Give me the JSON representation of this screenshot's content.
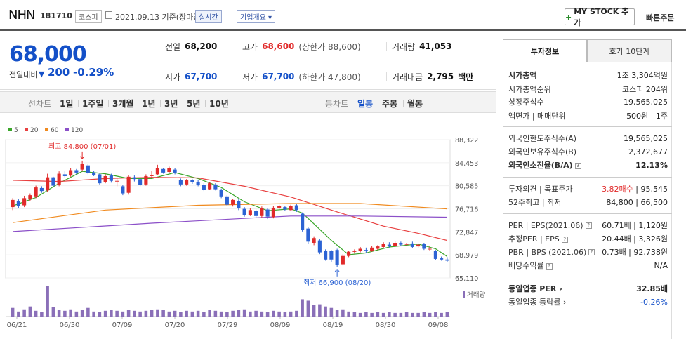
{
  "header": {
    "stock_name": "NHN",
    "stock_code": "181710",
    "market": "코스피",
    "date_text": "2021.09.13  기준(장마감)",
    "realtime_label": "실시간",
    "overview_label": "기업개요",
    "mystock_plus": "+",
    "mystock_label": "MY STOCK 추가",
    "quick_order": "빠른주문"
  },
  "price": {
    "current": "68,000",
    "change_label": "전일대비",
    "change_arrow": "▼",
    "change_amount": "200",
    "change_rate": "-0.29%"
  },
  "quote": {
    "prev_label": "전일",
    "prev_value": "68,200",
    "high_label": "고가",
    "high_value": "68,600",
    "upper_limit": "(상한가 88,600)",
    "volume_label": "거래량",
    "volume_value": "41,053",
    "open_label": "시가",
    "open_value": "67,700",
    "low_label": "저가",
    "low_value": "67,700",
    "lower_limit": "(하한가 47,800)",
    "amount_label": "거래대금",
    "amount_value": "2,795",
    "amount_unit": "백만"
  },
  "periods": {
    "line_label": "선차트",
    "line_items": [
      "1일",
      "1주일",
      "3개월",
      "1년",
      "3년",
      "5년",
      "10년"
    ],
    "candle_label": "봉차트",
    "candle_items": [
      "일봉",
      "주봉",
      "월봉"
    ],
    "selected": "일봉"
  },
  "chart_data": {
    "type": "candlestick",
    "legend": [
      "5",
      "20",
      "60",
      "120"
    ],
    "legend_colors": [
      "#3aa62a",
      "#e84040",
      "#f08a1e",
      "#8b4fc8"
    ],
    "y_ticks": [
      "88,322",
      "84,453",
      "80,585",
      "76,716",
      "72,847",
      "68,979",
      "65,110"
    ],
    "ylim": [
      65110,
      88322
    ],
    "x_ticks": [
      "06/21",
      "06/30",
      "07/09",
      "07/20",
      "07/29",
      "08/09",
      "08/19",
      "08/30",
      "09/08"
    ],
    "volume_label": "거래량",
    "high_annotation": "최고 84,800 (07/01)",
    "low_annotation": "최저 66,900 (08/20)",
    "candles": [
      {
        "o": 77000,
        "c": 78200,
        "h": 78500,
        "l": 76500
      },
      {
        "o": 78000,
        "c": 77200,
        "h": 78300,
        "l": 76800
      },
      {
        "o": 77300,
        "c": 78500,
        "h": 78900,
        "l": 77000
      },
      {
        "o": 78400,
        "c": 79000,
        "h": 79300,
        "l": 78000
      },
      {
        "o": 78800,
        "c": 80300,
        "h": 80600,
        "l": 78500
      },
      {
        "o": 80200,
        "c": 79700,
        "h": 80500,
        "l": 79400
      },
      {
        "o": 79800,
        "c": 82000,
        "h": 82600,
        "l": 79600
      },
      {
        "o": 82000,
        "c": 80600,
        "h": 82100,
        "l": 80400
      },
      {
        "o": 80700,
        "c": 82600,
        "h": 83000,
        "l": 80500
      },
      {
        "o": 82500,
        "c": 82200,
        "h": 83100,
        "l": 82000
      },
      {
        "o": 82300,
        "c": 83200,
        "h": 83500,
        "l": 82100
      },
      {
        "o": 83200,
        "c": 82800,
        "h": 83400,
        "l": 82500
      },
      {
        "o": 83300,
        "c": 84200,
        "h": 84800,
        "l": 83000
      },
      {
        "o": 84000,
        "c": 82700,
        "h": 84200,
        "l": 82500
      },
      {
        "o": 82800,
        "c": 82400,
        "h": 83100,
        "l": 82200
      },
      {
        "o": 82500,
        "c": 81000,
        "h": 82600,
        "l": 80800
      },
      {
        "o": 81200,
        "c": 82200,
        "h": 82500,
        "l": 81000
      },
      {
        "o": 82300,
        "c": 81400,
        "h": 82600,
        "l": 81100
      },
      {
        "o": 81400,
        "c": 81400,
        "h": 81800,
        "l": 80500
      },
      {
        "o": 80500,
        "c": 79300,
        "h": 80700,
        "l": 79000
      },
      {
        "o": 79400,
        "c": 82100,
        "h": 82400,
        "l": 79100
      },
      {
        "o": 82000,
        "c": 81700,
        "h": 82300,
        "l": 81300
      },
      {
        "o": 81700,
        "c": 80700,
        "h": 81900,
        "l": 80500
      },
      {
        "o": 80800,
        "c": 82200,
        "h": 82500,
        "l": 80600
      },
      {
        "o": 82200,
        "c": 82400,
        "h": 83100,
        "l": 81900
      },
      {
        "o": 82500,
        "c": 83500,
        "h": 84100,
        "l": 82400
      },
      {
        "o": 83400,
        "c": 82800,
        "h": 83600,
        "l": 82600
      },
      {
        "o": 82900,
        "c": 83500,
        "h": 83800,
        "l": 82700
      },
      {
        "o": 83300,
        "c": 82800,
        "h": 83500,
        "l": 82500
      },
      {
        "o": 81600,
        "c": 80800,
        "h": 81800,
        "l": 80500
      },
      {
        "o": 80800,
        "c": 81500,
        "h": 81700,
        "l": 80600
      },
      {
        "o": 81500,
        "c": 81200,
        "h": 81700,
        "l": 80900
      },
      {
        "o": 81200,
        "c": 80700,
        "h": 81500,
        "l": 80500
      },
      {
        "o": 80700,
        "c": 79900,
        "h": 81000,
        "l": 79700
      },
      {
        "o": 80000,
        "c": 81000,
        "h": 81200,
        "l": 79900
      },
      {
        "o": 80800,
        "c": 80000,
        "h": 81000,
        "l": 79800
      },
      {
        "o": 79900,
        "c": 78800,
        "h": 80100,
        "l": 78500
      },
      {
        "o": 78800,
        "c": 77400,
        "h": 79000,
        "l": 77200
      },
      {
        "o": 77400,
        "c": 78200,
        "h": 78400,
        "l": 77100
      },
      {
        "o": 78000,
        "c": 76800,
        "h": 78300,
        "l": 76500
      },
      {
        "o": 76700,
        "c": 75600,
        "h": 77000,
        "l": 75400
      },
      {
        "o": 75700,
        "c": 76500,
        "h": 76800,
        "l": 75500
      },
      {
        "o": 76400,
        "c": 75500,
        "h": 76600,
        "l": 75200
      },
      {
        "o": 75500,
        "c": 76800,
        "h": 77100,
        "l": 75200
      },
      {
        "o": 76600,
        "c": 75400,
        "h": 76800,
        "l": 75000
      },
      {
        "o": 75300,
        "c": 76900,
        "h": 77200,
        "l": 75100
      },
      {
        "o": 76900,
        "c": 77200,
        "h": 77400,
        "l": 76600
      },
      {
        "o": 77000,
        "c": 76600,
        "h": 77200,
        "l": 76400
      },
      {
        "o": 76500,
        "c": 77200,
        "h": 77400,
        "l": 76300
      },
      {
        "o": 77300,
        "c": 76500,
        "h": 77500,
        "l": 76200
      },
      {
        "o": 75900,
        "c": 73200,
        "h": 76100,
        "l": 72900
      },
      {
        "o": 73400,
        "c": 71200,
        "h": 73600,
        "l": 70800
      },
      {
        "o": 71000,
        "c": 71800,
        "h": 72100,
        "l": 70600
      },
      {
        "o": 71400,
        "c": 69400,
        "h": 71600,
        "l": 69100
      },
      {
        "o": 69600,
        "c": 68200,
        "h": 69900,
        "l": 68000
      },
      {
        "o": 69600,
        "c": 68200,
        "h": 69800,
        "l": 67800
      },
      {
        "o": 69800,
        "c": 67300,
        "h": 70000,
        "l": 66900
      },
      {
        "o": 67400,
        "c": 68800,
        "h": 69100,
        "l": 67200
      },
      {
        "o": 68800,
        "c": 69500,
        "h": 69700,
        "l": 68600
      },
      {
        "o": 69500,
        "c": 69600,
        "h": 69900,
        "l": 69200
      },
      {
        "o": 69600,
        "c": 70000,
        "h": 70300,
        "l": 69400
      },
      {
        "o": 69800,
        "c": 69600,
        "h": 70200,
        "l": 69300
      },
      {
        "o": 69700,
        "c": 70200,
        "h": 70500,
        "l": 69500
      },
      {
        "o": 70000,
        "c": 70400,
        "h": 70600,
        "l": 69800
      },
      {
        "o": 70300,
        "c": 70800,
        "h": 71100,
        "l": 70100
      },
      {
        "o": 70700,
        "c": 70400,
        "h": 71100,
        "l": 70200
      },
      {
        "o": 70500,
        "c": 71000,
        "h": 71300,
        "l": 70300
      },
      {
        "o": 71000,
        "c": 70700,
        "h": 71200,
        "l": 70400
      },
      {
        "o": 70700,
        "c": 70800,
        "h": 71000,
        "l": 70500
      },
      {
        "o": 70900,
        "c": 70300,
        "h": 71200,
        "l": 70100
      },
      {
        "o": 70400,
        "c": 70700,
        "h": 70900,
        "l": 70200
      },
      {
        "o": 70800,
        "c": 70000,
        "h": 71000,
        "l": 69800
      },
      {
        "o": 70000,
        "c": 70000,
        "h": 70500,
        "l": 69700
      },
      {
        "o": 69600,
        "c": 68300,
        "h": 69800,
        "l": 68100
      },
      {
        "o": 68400,
        "c": 68200,
        "h": 68700,
        "l": 68000
      },
      {
        "o": 68200,
        "c": 68000,
        "h": 68600,
        "l": 67700
      }
    ],
    "ma": [
      {
        "name": "5",
        "values": [
          [
            0,
            77200
          ],
          [
            4,
            78600
          ],
          [
            8,
            81000
          ],
          [
            12,
            83000
          ],
          [
            16,
            82600
          ],
          [
            20,
            81800
          ],
          [
            24,
            81800
          ],
          [
            28,
            82800
          ],
          [
            32,
            81800
          ],
          [
            36,
            80300
          ],
          [
            40,
            77900
          ],
          [
            44,
            76400
          ],
          [
            48,
            76700
          ],
          [
            50,
            76000
          ],
          [
            52,
            74200
          ],
          [
            55,
            71400
          ],
          [
            58,
            69000
          ],
          [
            61,
            69300
          ],
          [
            65,
            70300
          ],
          [
            70,
            70800
          ],
          [
            73,
            70000
          ],
          [
            75,
            68700
          ]
        ]
      },
      {
        "name": "20",
        "values": [
          [
            0,
            81500
          ],
          [
            8,
            81300
          ],
          [
            16,
            81800
          ],
          [
            24,
            82000
          ],
          [
            32,
            81900
          ],
          [
            40,
            80500
          ],
          [
            48,
            78700
          ],
          [
            56,
            76200
          ],
          [
            64,
            73800
          ],
          [
            70,
            72600
          ],
          [
            75,
            71400
          ]
        ]
      },
      {
        "name": "60",
        "values": [
          [
            0,
            74400
          ],
          [
            16,
            76500
          ],
          [
            32,
            77300
          ],
          [
            48,
            77600
          ],
          [
            60,
            77600
          ],
          [
            75,
            76700
          ]
        ]
      },
      {
        "name": "120",
        "values": [
          [
            0,
            72900
          ],
          [
            24,
            74300
          ],
          [
            48,
            75500
          ],
          [
            60,
            75500
          ],
          [
            75,
            75300
          ]
        ]
      }
    ],
    "volumes": [
      60,
      35,
      50,
      70,
      40,
      30,
      210,
      65,
      45,
      40,
      50,
      35,
      45,
      60,
      35,
      30,
      40,
      45,
      40,
      35,
      45,
      40,
      35,
      40,
      45,
      50,
      45,
      35,
      40,
      30,
      40,
      35,
      40,
      30,
      45,
      40,
      35,
      30,
      40,
      45,
      50,
      35,
      40,
      35,
      30,
      40,
      35,
      30,
      35,
      40,
      120,
      110,
      80,
      85,
      70,
      60,
      45,
      50,
      35,
      30,
      25,
      30,
      25,
      30,
      25,
      30,
      25,
      25,
      30,
      25,
      25,
      30,
      25,
      30,
      25,
      30
    ]
  },
  "invest": {
    "tab_invest": "투자정보",
    "tab_quote": "호가 10단계",
    "market_cap_label": "시가총액",
    "market_cap_value": "1조 3,304억원",
    "cap_rank_label": "시가총액순위",
    "cap_rank_value": "코스피 204위",
    "shares_label": "상장주식수",
    "shares_value": "19,565,025",
    "par_label": "액면가 | 매매단위",
    "par_value": "500원 | 1주",
    "foreign_limit_label": "외국인한도주식수(A)",
    "foreign_limit_value": "19,565,025",
    "foreign_hold_label": "외국인보유주식수(B)",
    "foreign_hold_value": "2,372,677",
    "foreign_ratio_label": "외국인소진율(B/A)",
    "foreign_ratio_value": "12.13%",
    "opinion_label": "투자의견 | 목표주가",
    "opinion_value": "3.82매수",
    "target_value": "95,545",
    "w52_label": "52주최고 | 최저",
    "w52_value": "84,800 | 66,500",
    "per_label": "PER | EPS(2021.06)",
    "per_value": "60.71배 | 1,120원",
    "est_per_label": "추정PER | EPS",
    "est_per_value": "20.44배 | 3,326원",
    "pbr_label": "PBR | BPS (2021.06)",
    "pbr_value": "0.73배 | 92,738원",
    "dividend_label": "배당수익률",
    "dividend_value": "N/A",
    "industry_per_label": "동일업종 PER",
    "industry_per_value": "32.85배",
    "industry_rate_label": "동일업종 등락률",
    "industry_rate_value": "-0.26%"
  }
}
